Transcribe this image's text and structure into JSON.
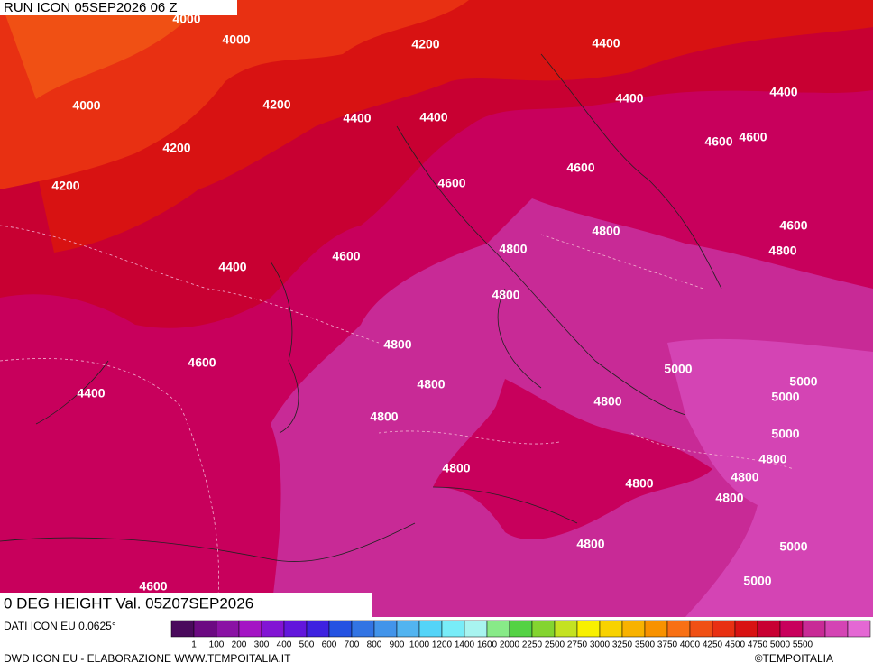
{
  "header": {
    "run_title": "RUN ICON 05SEP2026 06 Z"
  },
  "map": {
    "valid_label": "0 DEG HEIGHT Val. 05Z07SEP2026",
    "contour_labels": [
      4000,
      4000,
      4200,
      4400,
      4000,
      4200,
      4400,
      4400,
      4400,
      4400,
      4200,
      4600,
      4600,
      4600,
      4200,
      4600,
      4600,
      4800,
      4800,
      4800,
      4400,
      4600,
      4800,
      4800,
      4600,
      5000,
      5000,
      4400,
      4800,
      4800,
      5000,
      4800,
      5000,
      4800,
      4800,
      4800,
      4800,
      4800,
      4800,
      5000,
      5000,
      4600
    ]
  },
  "legend": {
    "colors": [
      "#4a0a5c",
      "#6c0a82",
      "#8a12a4",
      "#a414c4",
      "#8214d4",
      "#6216dc",
      "#3e22e0",
      "#2452e2",
      "#3274e4",
      "#4294ea",
      "#52b4f0",
      "#54d4f8",
      "#78ecf8",
      "#a8f4f0",
      "#88ea88",
      "#54d244",
      "#84d430",
      "#c4e222",
      "#f8f000",
      "#f8d200",
      "#f8b200",
      "#f89200",
      "#f87014",
      "#f05014",
      "#e83012",
      "#d81212",
      "#c80032",
      "#c8005c",
      "#c82a96",
      "#d444b4",
      "#e468d4"
    ],
    "labels": [
      1,
      100,
      200,
      300,
      400,
      500,
      600,
      700,
      800,
      900,
      1000,
      1200,
      1400,
      1600,
      2000,
      2250,
      2500,
      2750,
      3000,
      3250,
      3500,
      3750,
      4000,
      4250,
      4500,
      4750,
      5000,
      5500
    ]
  },
  "footer": {
    "data_source": "DATI ICON EU 0.0625°",
    "credit": "DWD ICON EU - ELABORAZIONE WWW.TEMPOITALIA.IT",
    "copyright": "©TEMPOITALIA"
  }
}
